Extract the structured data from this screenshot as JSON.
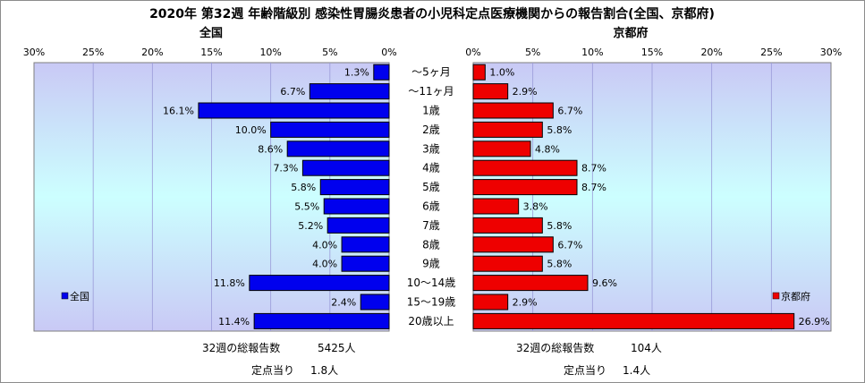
{
  "title": "2020年 第32週 年齢階級別 感染性胃腸炎患者の小児科定点医療機関からの報告割合(全国、京都府)",
  "left_panel": {
    "heading": "全国",
    "legend": "全国",
    "footer": {
      "total_label": "32週の総報告数",
      "total_value": "5425人",
      "per_label": "定点当り",
      "per_value": "1.8人"
    }
  },
  "right_panel": {
    "heading": "京都府",
    "legend": "京都府",
    "footer": {
      "total_label": "32週の総報告数",
      "total_value": "104人",
      "per_label": "定点当り",
      "per_value": "1.4人"
    }
  },
  "colors": {
    "nation_bar": "#0000ee",
    "kyoto_bar": "#ee0000",
    "plot_bg_top": "#c9c9f5",
    "plot_bg_mid": "#ccffff",
    "plot_bg_bottom": "#c9c9f5"
  },
  "chart_data": {
    "type": "bar",
    "orientation": "horizontal-butterfly",
    "categories": [
      "～5ヶ月",
      "～11ヶ月",
      "1歳",
      "2歳",
      "3歳",
      "4歳",
      "5歳",
      "6歳",
      "7歳",
      "8歳",
      "9歳",
      "10～14歳",
      "15～19歳",
      "20歳以上"
    ],
    "x_ticks": [
      "0%",
      "5%",
      "10%",
      "15%",
      "20%",
      "25%",
      "30%"
    ],
    "xlim": [
      0,
      30
    ],
    "series": [
      {
        "name": "全国",
        "values": [
          1.3,
          6.7,
          16.1,
          10.0,
          8.6,
          7.3,
          5.8,
          5.5,
          5.2,
          4.0,
          4.0,
          11.8,
          2.4,
          11.4
        ],
        "labels": [
          "1.3%",
          "6.7%",
          "16.1%",
          "10.0%",
          "8.6%",
          "7.3%",
          "5.8%",
          "5.5%",
          "5.2%",
          "4.0%",
          "4.0%",
          "11.8%",
          "2.4%",
          "11.4%"
        ]
      },
      {
        "name": "京都府",
        "values": [
          1.0,
          2.9,
          6.7,
          5.8,
          4.8,
          8.7,
          8.7,
          3.8,
          5.8,
          6.7,
          5.8,
          9.6,
          2.9,
          26.9
        ],
        "labels": [
          "1.0%",
          "2.9%",
          "6.7%",
          "5.8%",
          "4.8%",
          "8.7%",
          "8.7%",
          "3.8%",
          "5.8%",
          "6.7%",
          "5.8%",
          "9.6%",
          "2.9%",
          "26.9%"
        ]
      }
    ]
  }
}
